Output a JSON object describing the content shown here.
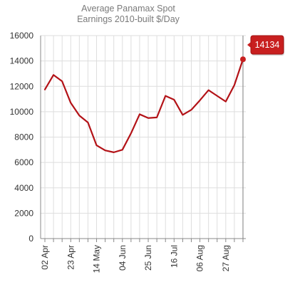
{
  "chart_data": {
    "type": "line",
    "title": "Average Panamax Spot",
    "subtitle": "Earnings 2010-built $/Day",
    "xlabel": "",
    "ylabel": "",
    "ylim": [
      0,
      16000
    ],
    "yticks": [
      0,
      2000,
      4000,
      6000,
      8000,
      10000,
      12000,
      14000,
      16000
    ],
    "xtick_labels": [
      "02 Apr",
      "23 Apr",
      "14 May",
      "04 Jun",
      "25 Jun",
      "16 Jul",
      "06 Aug",
      "27 Aug"
    ],
    "x": [
      "02 Apr",
      "09 Apr",
      "16 Apr",
      "23 Apr",
      "30 Apr",
      "07 May",
      "14 May",
      "21 May",
      "28 May",
      "04 Jun",
      "11 Jun",
      "18 Jun",
      "25 Jun",
      "02 Jul",
      "09 Jul",
      "16 Jul",
      "23 Jul",
      "30 Jul",
      "06 Aug",
      "13 Aug",
      "20 Aug",
      "27 Aug",
      "03 Sep",
      "10 Sep"
    ],
    "series": [
      {
        "values": [
          11750,
          12900,
          12400,
          10700,
          9700,
          9150,
          7350,
          6950,
          6800,
          7000,
          8300,
          9800,
          9500,
          9550,
          11250,
          10950,
          9750,
          10150,
          10900,
          11700,
          11250,
          10800,
          12100,
          14134
        ],
        "color": "#b31217"
      }
    ],
    "grid": true,
    "legend": "none",
    "tooltip": {
      "value": "14134",
      "color": "#c81f1f"
    }
  }
}
